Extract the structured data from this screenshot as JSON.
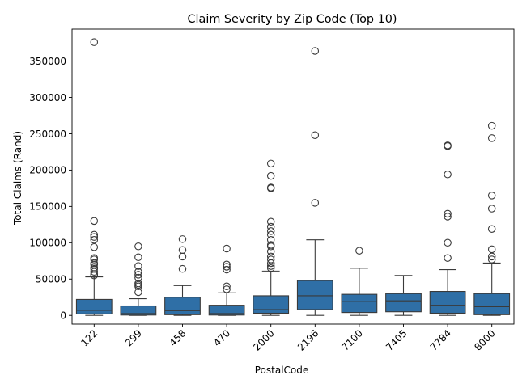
{
  "chart_data": {
    "type": "boxplot",
    "title": "Claim Severity by Zip Code (Top 10)",
    "xlabel": "PostalCode",
    "ylabel": "Total Claims (Rand)",
    "ylim": [
      -12000,
      394000
    ],
    "yticks": [
      0,
      50000,
      100000,
      150000,
      200000,
      250000,
      300000,
      350000
    ],
    "grid": false,
    "color": "#2f6fa6",
    "categories": [
      "122",
      "299",
      "458",
      "470",
      "2000",
      "2196",
      "7100",
      "7405",
      "7784",
      "8000"
    ],
    "boxes": [
      {
        "category": "122",
        "whisker_low": 0,
        "q1": 2000,
        "median": 7000,
        "q3": 22000,
        "whisker_high": 53000,
        "outliers": [
          376000,
          130000,
          111000,
          108000,
          104000,
          94000,
          79000,
          77000,
          72000,
          70000,
          66000,
          64000,
          60000,
          57000,
          55000
        ]
      },
      {
        "category": "299",
        "whisker_low": 0,
        "q1": 500,
        "median": 2500,
        "q3": 13000,
        "whisker_high": 23000,
        "outliers": [
          95000,
          80000,
          68000,
          60000,
          56000,
          52000,
          44000,
          42000,
          40000,
          32000
        ]
      },
      {
        "category": "458",
        "whisker_low": 0,
        "q1": 1000,
        "median": 6500,
        "q3": 25000,
        "whisker_high": 41000,
        "outliers": [
          105000,
          90000,
          81000,
          64000
        ]
      },
      {
        "category": "470",
        "whisker_low": 0,
        "q1": 500,
        "median": 2500,
        "q3": 14000,
        "whisker_high": 31000,
        "outliers": [
          92000,
          70000,
          67000,
          63000,
          40000,
          36000
        ]
      },
      {
        "category": "2000",
        "whisker_low": 0,
        "q1": 3000,
        "median": 8000,
        "q3": 27000,
        "whisker_high": 61000,
        "outliers": [
          209000,
          192000,
          176000,
          175000,
          129000,
          122000,
          116000,
          111000,
          104000,
          97000,
          95000,
          88000,
          81000,
          77000,
          72000,
          68000,
          65000
        ]
      },
      {
        "category": "2196",
        "whisker_low": 0,
        "q1": 8000,
        "median": 27000,
        "q3": 48000,
        "whisker_high": 104000,
        "outliers": [
          364000,
          248000,
          155000
        ]
      },
      {
        "category": "7100",
        "whisker_low": 0,
        "q1": 4000,
        "median": 19000,
        "q3": 29000,
        "whisker_high": 65000,
        "outliers": [
          89000
        ]
      },
      {
        "category": "7405",
        "whisker_low": 0,
        "q1": 5000,
        "median": 20000,
        "q3": 30000,
        "whisker_high": 55000,
        "outliers": []
      },
      {
        "category": "7784",
        "whisker_low": 0,
        "q1": 3000,
        "median": 14000,
        "q3": 33000,
        "whisker_high": 63000,
        "outliers": [
          234000,
          233000,
          194000,
          140000,
          136000,
          100000,
          79000
        ]
      },
      {
        "category": "8000",
        "whisker_low": 0,
        "q1": 1000,
        "median": 12000,
        "q3": 30000,
        "whisker_high": 72000,
        "outliers": [
          261000,
          244000,
          165000,
          147000,
          119000,
          91000,
          81000,
          77000
        ]
      }
    ]
  }
}
